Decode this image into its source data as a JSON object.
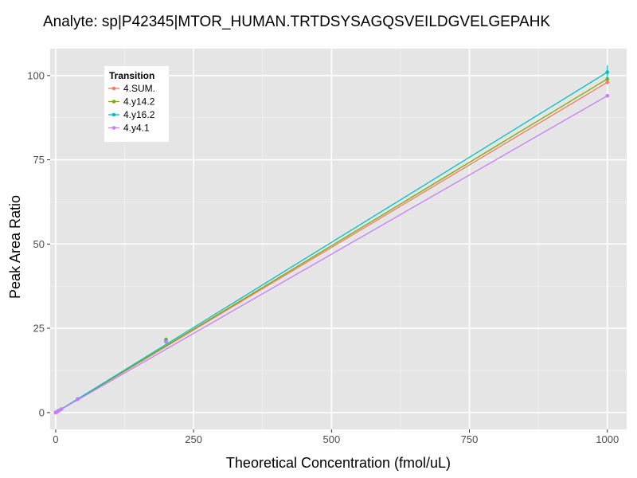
{
  "chart_data": {
    "type": "line",
    "title": "Analyte: sp|P42345|MTOR_HUMAN.TRTDSYSAGQSVEILDGVELGEPAHK",
    "xlabel": "Theoretical Concentration (fmol/uL)",
    "ylabel": "Peak Area Ratio",
    "xlim": [
      -10,
      1035
    ],
    "ylim": [
      -5,
      108
    ],
    "x_ticks": [
      0,
      250,
      500,
      750,
      1000
    ],
    "x_tick_labels": [
      "0",
      "250",
      "500",
      "750",
      "1000"
    ],
    "y_ticks": [
      0,
      25,
      50,
      75,
      100
    ],
    "y_tick_labels": [
      "0",
      "25",
      "50",
      "75",
      "100"
    ],
    "grid": true,
    "legend": {
      "title": "Transition",
      "position": "top-left"
    },
    "series": [
      {
        "name": "4.SUM.",
        "color": "#F8766D",
        "x": [
          0,
          0.5,
          1,
          2,
          5,
          10,
          40,
          200,
          1000
        ],
        "y": [
          0.0,
          0.05,
          0.1,
          0.2,
          0.5,
          1.0,
          4.0,
          21.0,
          98.0
        ],
        "fit": [
          [
            0,
            0
          ],
          [
            1000,
            98
          ]
        ]
      },
      {
        "name": "4.y14.2",
        "color": "#7CAE00",
        "x": [
          0,
          0.5,
          1,
          2,
          5,
          10,
          40,
          200,
          1000
        ],
        "y": [
          0.0,
          0.05,
          0.1,
          0.2,
          0.5,
          1.0,
          4.0,
          21.7,
          99.0
        ],
        "fit": [
          [
            0,
            0
          ],
          [
            1000,
            99
          ]
        ]
      },
      {
        "name": "4.y16.2",
        "color": "#00BFC4",
        "x": [
          0,
          0.5,
          1,
          2,
          5,
          10,
          40,
          200,
          1000
        ],
        "y": [
          0.0,
          0.05,
          0.1,
          0.2,
          0.5,
          1.0,
          4.0,
          21.3,
          101.0
        ],
        "fit": [
          [
            0,
            0
          ],
          [
            1000,
            101
          ]
        ]
      },
      {
        "name": "4.y4.1",
        "color": "#C77CFF",
        "x": [
          0,
          0.5,
          1,
          2,
          5,
          10,
          40,
          200,
          1000
        ],
        "y": [
          0.0,
          0.05,
          0.1,
          0.2,
          0.5,
          1.0,
          4.0,
          21.0,
          94.0
        ],
        "fit": [
          [
            0,
            0
          ],
          [
            1000,
            94
          ]
        ]
      }
    ]
  }
}
